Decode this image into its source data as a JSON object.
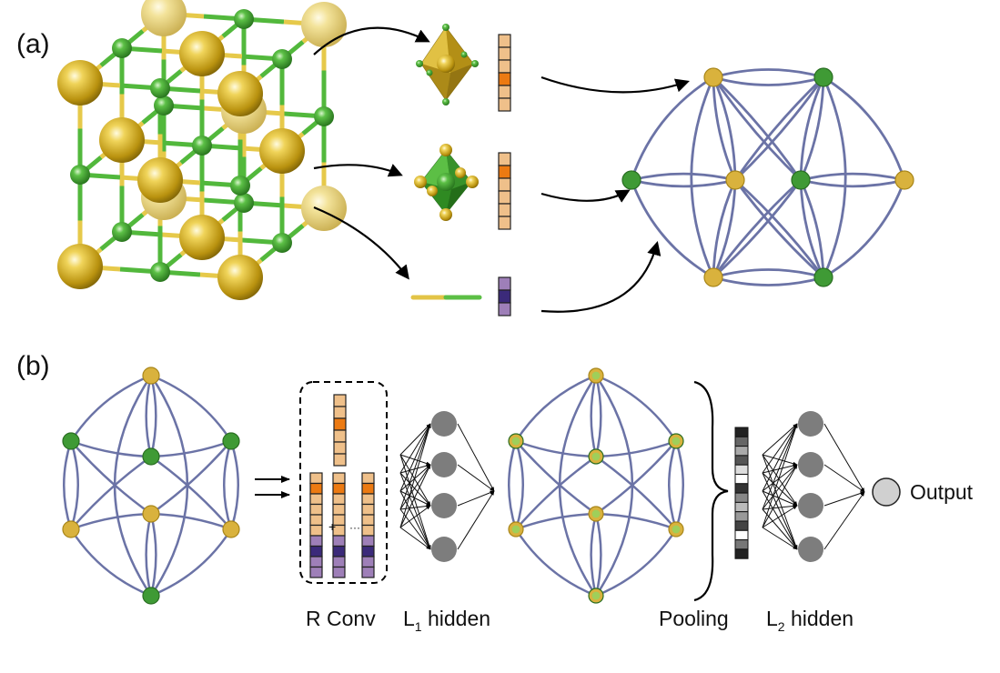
{
  "panel_labels": {
    "a": "(a)",
    "b": "(b)"
  },
  "captions": {
    "rconv": "R Conv",
    "l1_main": "L",
    "l1_sub": "1",
    "l1_rest": " hidden",
    "pooling": "Pooling",
    "l2_main": "L",
    "l2_sub": "2",
    "l2_rest": " hidden",
    "output": "Output"
  },
  "conv_symbols": {
    "plus": "+",
    "dots": "···"
  },
  "colors": {
    "gold": "#d9b23d",
    "gold_dark": "#a8861a",
    "green": "#3f9a35",
    "green_dark": "#2a6e22",
    "edge": "#6b73a6",
    "peach": "#efc08a",
    "orange": "#ec7a12",
    "purple_light": "#9e7fb8",
    "purple_dark": "#3b2a7a",
    "hidden_node": "#7d7d7d",
    "output_node": "#d0d0d0"
  }
}
